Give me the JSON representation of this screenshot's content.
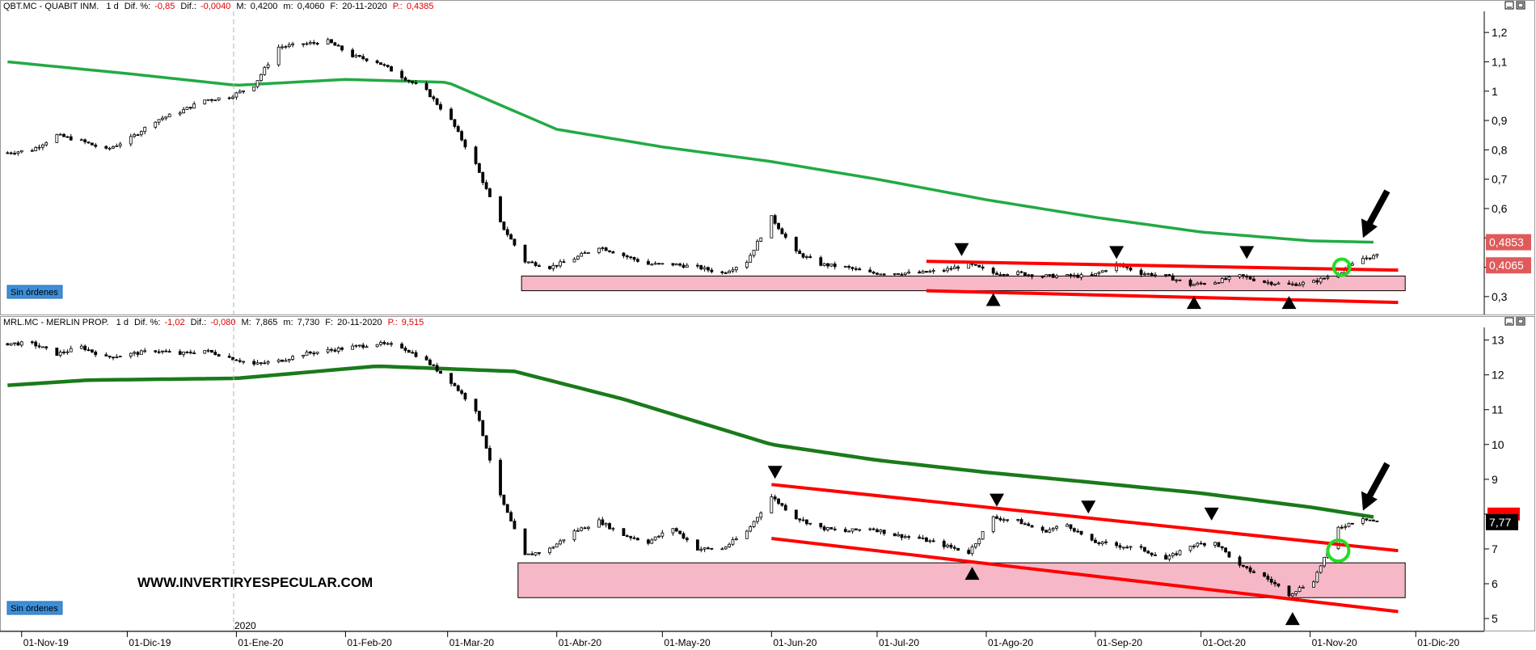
{
  "panels": [
    {
      "id": "qbt",
      "header": {
        "ticker": "QBT.MC - QUABIT INM.",
        "period": "1 d",
        "dif_pct_label": "Dif. %:",
        "dif_pct": "-0,85",
        "dif_label": "Dif.:",
        "dif": "-0,0040",
        "high_label": "M:",
        "high": "0,4200",
        "low_label": "m:",
        "low": "0,4060",
        "date_label": "F:",
        "date": "20-11-2020",
        "price_label": "P.:",
        "price": "0,4385"
      },
      "orders_button": "Sin órdenes",
      "price_tags": [
        {
          "text": "0,4853",
          "value": 0.4853,
          "color": "#e05a5a"
        },
        {
          "text": "0,4065",
          "value": 0.4065,
          "color": "#e05a5a"
        }
      ]
    },
    {
      "id": "mrl",
      "header": {
        "ticker": "MRL.MC - MERLIN PROP.",
        "period": "1 d",
        "dif_pct_label": "Dif. %:",
        "dif_pct": "-1,02",
        "dif_label": "Dif.:",
        "dif": "-0,080",
        "high_label": "M:",
        "high": "7,865",
        "low_label": "m:",
        "low": "7,730",
        "date_label": "F:",
        "date": "20-11-2020",
        "price_label": "P.:",
        "price": "9,515"
      },
      "orders_button": "Sin órdenes",
      "watermark": "WWW.INVERTIRYESPECULAR.COM",
      "price_tags": [
        {
          "text": "7,77",
          "value": 7.77,
          "color": "#000000"
        }
      ]
    }
  ],
  "year_marker": "2020",
  "x_axis_labels": [
    "01-Nov-19",
    "01-Dic-19",
    "01-Ene-20",
    "01-Feb-20",
    "01-Mar-20",
    "01-Abr-20",
    "01-May-20",
    "01-Jun-20",
    "01-Jul-20",
    "01-Ago-20",
    "01-Sep-20",
    "01-Oct-20",
    "01-Nov-20",
    "01-Dic-20"
  ],
  "colors": {
    "moving_average": "#22aa44",
    "moving_average_dark": "#1a7a1a",
    "trend_lines": "#ff0000",
    "support_zone": "#f6b8c6",
    "breakout_circle": "#22dd22",
    "candles": "#000000"
  },
  "chart_data": [
    {
      "type": "candlestick",
      "title": "QBT.MC - QUABIT INM.",
      "ylim": [
        0.25,
        1.25
      ],
      "y_ticks": [
        "1,2",
        "1,1",
        "1",
        "0,9",
        "0,8",
        "0,7",
        "0,6",
        "0,5",
        "0,4",
        "0,3"
      ],
      "y_tick_values": [
        1.2,
        1.1,
        1.0,
        0.9,
        0.8,
        0.7,
        0.6,
        0.5,
        0.4,
        0.3
      ],
      "x_range": [
        "2019-10-27",
        "2020-12-20"
      ],
      "close_series": [
        [
          "2019-10-28",
          0.79
        ],
        [
          "2019-11-04",
          0.8
        ],
        [
          "2019-11-11",
          0.85
        ],
        [
          "2019-11-18",
          0.83
        ],
        [
          "2019-11-25",
          0.8
        ],
        [
          "2019-12-02",
          0.84
        ],
        [
          "2019-12-09",
          0.9
        ],
        [
          "2019-12-16",
          0.93
        ],
        [
          "2019-12-23",
          0.97
        ],
        [
          "2019-12-30",
          0.98
        ],
        [
          "2020-01-06",
          1.02
        ],
        [
          "2020-01-13",
          1.15
        ],
        [
          "2020-01-20",
          1.16
        ],
        [
          "2020-01-27",
          1.17
        ],
        [
          "2020-02-03",
          1.12
        ],
        [
          "2020-02-10",
          1.1
        ],
        [
          "2020-02-17",
          1.05
        ],
        [
          "2020-02-24",
          1.0
        ],
        [
          "2020-03-02",
          0.9
        ],
        [
          "2020-03-09",
          0.75
        ],
        [
          "2020-03-16",
          0.55
        ],
        [
          "2020-03-23",
          0.42
        ],
        [
          "2020-03-30",
          0.4
        ],
        [
          "2020-04-06",
          0.43
        ],
        [
          "2020-04-13",
          0.47
        ],
        [
          "2020-04-20",
          0.44
        ],
        [
          "2020-04-27",
          0.41
        ],
        [
          "2020-05-04",
          0.41
        ],
        [
          "2020-05-11",
          0.4
        ],
        [
          "2020-05-18",
          0.38
        ],
        [
          "2020-05-25",
          0.42
        ],
        [
          "2020-06-01",
          0.57
        ],
        [
          "2020-06-08",
          0.45
        ],
        [
          "2020-06-15",
          0.41
        ],
        [
          "2020-06-22",
          0.4
        ],
        [
          "2020-06-29",
          0.38
        ],
        [
          "2020-07-06",
          0.38
        ],
        [
          "2020-07-13",
          0.38
        ],
        [
          "2020-07-20",
          0.39
        ],
        [
          "2020-07-27",
          0.41
        ],
        [
          "2020-08-03",
          0.38
        ],
        [
          "2020-08-10",
          0.38
        ],
        [
          "2020-08-17",
          0.37
        ],
        [
          "2020-08-24",
          0.37
        ],
        [
          "2020-08-31",
          0.37
        ],
        [
          "2020-09-07",
          0.41
        ],
        [
          "2020-09-14",
          0.38
        ],
        [
          "2020-09-21",
          0.37
        ],
        [
          "2020-09-28",
          0.34
        ],
        [
          "2020-10-05",
          0.35
        ],
        [
          "2020-10-12",
          0.37
        ],
        [
          "2020-10-19",
          0.35
        ],
        [
          "2020-10-26",
          0.34
        ],
        [
          "2020-11-02",
          0.35
        ],
        [
          "2020-11-09",
          0.38
        ],
        [
          "2020-11-16",
          0.43
        ],
        [
          "2020-11-20",
          0.4385
        ]
      ],
      "moving_average": [
        [
          "2019-10-28",
          1.1
        ],
        [
          "2019-12-01",
          1.06
        ],
        [
          "2020-01-01",
          1.02
        ],
        [
          "2020-02-01",
          1.04
        ],
        [
          "2020-03-01",
          1.03
        ],
        [
          "2020-04-01",
          0.87
        ],
        [
          "2020-05-01",
          0.81
        ],
        [
          "2020-06-01",
          0.76
        ],
        [
          "2020-07-01",
          0.7
        ],
        [
          "2020-08-01",
          0.63
        ],
        [
          "2020-09-01",
          0.57
        ],
        [
          "2020-10-01",
          0.52
        ],
        [
          "2020-11-01",
          0.49
        ],
        [
          "2020-11-20",
          0.485
        ]
      ],
      "support_zone": {
        "x_from": "2020-03-22",
        "x_to": "2020-11-28",
        "y_from": 0.32,
        "y_to": 0.37
      },
      "trend_lines": [
        {
          "from": [
            "2020-07-15",
            0.42
          ],
          "to": [
            "2020-11-26",
            0.39
          ]
        },
        {
          "from": [
            "2020-07-15",
            0.32
          ],
          "to": [
            "2020-11-26",
            0.28
          ]
        }
      ],
      "markers_down": [
        [
          "2020-07-25",
          0.46
        ],
        [
          "2020-09-07",
          0.45
        ],
        [
          "2020-10-14",
          0.45
        ]
      ],
      "markers_up": [
        [
          "2020-08-03",
          0.29
        ],
        [
          "2020-09-29",
          0.28
        ],
        [
          "2020-10-26",
          0.28
        ]
      ],
      "breakout_circle": [
        "2020-11-10",
        0.4
      ],
      "arrow_at": [
        "2020-11-16",
        0.5
      ]
    },
    {
      "type": "candlestick",
      "title": "MRL.MC - MERLIN PROP.",
      "ylim": [
        4.7,
        13.2
      ],
      "y_ticks": [
        "13",
        "12",
        "11",
        "10",
        "9",
        "8",
        "7",
        "6",
        "5"
      ],
      "y_tick_values": [
        13,
        12,
        11,
        10,
        9,
        8,
        7,
        6,
        5
      ],
      "x_range": [
        "2019-10-27",
        "2020-12-20"
      ],
      "close_series": [
        [
          "2019-10-28",
          12.9
        ],
        [
          "2019-11-04",
          12.9
        ],
        [
          "2019-11-11",
          12.6
        ],
        [
          "2019-11-18",
          12.8
        ],
        [
          "2019-11-25",
          12.5
        ],
        [
          "2019-12-02",
          12.6
        ],
        [
          "2019-12-09",
          12.7
        ],
        [
          "2019-12-16",
          12.6
        ],
        [
          "2019-12-23",
          12.7
        ],
        [
          "2019-12-30",
          12.5
        ],
        [
          "2020-01-06",
          12.3
        ],
        [
          "2020-01-13",
          12.4
        ],
        [
          "2020-01-20",
          12.6
        ],
        [
          "2020-01-27",
          12.7
        ],
        [
          "2020-02-03",
          12.8
        ],
        [
          "2020-02-10",
          12.9
        ],
        [
          "2020-02-17",
          12.8
        ],
        [
          "2020-02-24",
          12.4
        ],
        [
          "2020-03-02",
          11.8
        ],
        [
          "2020-03-09",
          11.0
        ],
        [
          "2020-03-16",
          8.5
        ],
        [
          "2020-03-23",
          6.8
        ],
        [
          "2020-03-30",
          7.0
        ],
        [
          "2020-04-06",
          7.5
        ],
        [
          "2020-04-13",
          7.8
        ],
        [
          "2020-04-20",
          7.4
        ],
        [
          "2020-04-27",
          7.2
        ],
        [
          "2020-05-04",
          7.6
        ],
        [
          "2020-05-11",
          7.0
        ],
        [
          "2020-05-18",
          7.0
        ],
        [
          "2020-05-25",
          7.5
        ],
        [
          "2020-06-01",
          8.5
        ],
        [
          "2020-06-08",
          7.9
        ],
        [
          "2020-06-15",
          7.6
        ],
        [
          "2020-06-22",
          7.5
        ],
        [
          "2020-06-29",
          7.6
        ],
        [
          "2020-07-06",
          7.4
        ],
        [
          "2020-07-13",
          7.3
        ],
        [
          "2020-07-20",
          7.1
        ],
        [
          "2020-07-27",
          6.9
        ],
        [
          "2020-08-03",
          7.9
        ],
        [
          "2020-08-10",
          7.8
        ],
        [
          "2020-08-17",
          7.5
        ],
        [
          "2020-08-24",
          7.7
        ],
        [
          "2020-08-31",
          7.2
        ],
        [
          "2020-09-07",
          7.1
        ],
        [
          "2020-09-14",
          7.0
        ],
        [
          "2020-09-21",
          6.7
        ],
        [
          "2020-09-28",
          7.1
        ],
        [
          "2020-10-05",
          7.2
        ],
        [
          "2020-10-12",
          6.5
        ],
        [
          "2020-10-19",
          6.2
        ],
        [
          "2020-10-26",
          5.7
        ],
        [
          "2020-11-02",
          6.1
        ],
        [
          "2020-11-09",
          7.6
        ],
        [
          "2020-11-16",
          7.9
        ],
        [
          "2020-11-20",
          7.77
        ]
      ],
      "moving_average": [
        [
          "2019-10-28",
          11.7
        ],
        [
          "2019-11-20",
          11.85
        ],
        [
          "2020-01-01",
          11.9
        ],
        [
          "2020-02-10",
          12.25
        ],
        [
          "2020-03-20",
          12.1
        ],
        [
          "2020-04-20",
          11.3
        ],
        [
          "2020-06-01",
          10.0
        ],
        [
          "2020-07-01",
          9.55
        ],
        [
          "2020-08-01",
          9.2
        ],
        [
          "2020-09-01",
          8.9
        ],
        [
          "2020-10-01",
          8.6
        ],
        [
          "2020-11-01",
          8.2
        ],
        [
          "2020-11-20",
          7.9
        ]
      ],
      "support_zone": {
        "x_from": "2020-03-21",
        "x_to": "2020-11-28",
        "y_from": 5.6,
        "y_to": 6.6
      },
      "trend_lines": [
        {
          "from": [
            "2020-06-01",
            8.85
          ],
          "to": [
            "2020-11-26",
            6.95
          ]
        },
        {
          "from": [
            "2020-06-01",
            7.3
          ],
          "to": [
            "2020-11-26",
            5.2
          ]
        }
      ],
      "markers_down": [
        [
          "2020-06-02",
          9.2
        ],
        [
          "2020-08-04",
          8.4
        ],
        [
          "2020-08-30",
          8.2
        ],
        [
          "2020-10-04",
          8.0
        ]
      ],
      "markers_up": [
        [
          "2020-07-28",
          6.3
        ],
        [
          "2020-10-27",
          5.0
        ]
      ],
      "breakout_circle": [
        "2020-11-09",
        6.95
      ],
      "arrow_at": [
        "2020-11-16",
        8.1
      ]
    }
  ]
}
